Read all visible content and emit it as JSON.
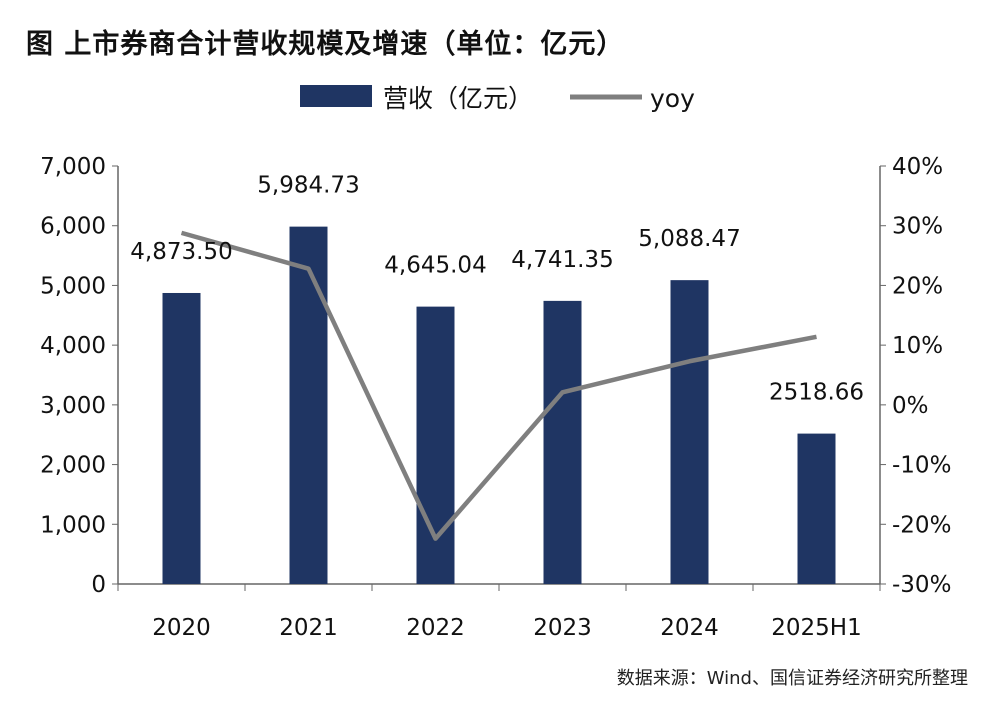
{
  "title": "图  上市券商合计营收规模及增速（单位：亿元）",
  "source": "数据来源：Wind、国信证券经济研究所整理",
  "colors": {
    "bar": "#1f3563",
    "line": "#7f7f7f"
  },
  "chart_data": {
    "type": "bar+line",
    "categories": [
      "2020",
      "2021",
      "2022",
      "2023",
      "2024",
      "2025H1"
    ],
    "series": [
      {
        "name": "营收（亿元）",
        "type": "bar",
        "axis": "left",
        "values": [
          4873.5,
          5984.73,
          4645.04,
          4741.35,
          5088.47,
          2518.66
        ],
        "labels": [
          "4,873.50",
          "5,984.73",
          "4,645.04",
          "4,741.35",
          "5,088.47",
          "2518.66"
        ]
      },
      {
        "name": "yoy",
        "type": "line",
        "axis": "right",
        "values": [
          28.8,
          22.8,
          -22.4,
          2.1,
          7.3,
          11.4
        ]
      }
    ],
    "left_axis": {
      "range": [
        0,
        7000
      ],
      "ticks": [
        "0",
        "1,000",
        "2,000",
        "3,000",
        "4,000",
        "5,000",
        "6,000",
        "7,000"
      ]
    },
    "right_axis": {
      "range": [
        -30,
        40
      ],
      "unit": "%",
      "ticks": [
        "-30%",
        "-20%",
        "-10%",
        "0%",
        "10%",
        "20%",
        "30%",
        "40%"
      ]
    },
    "legend": {
      "position": "top",
      "items": [
        "营收（亿元）",
        "yoy"
      ]
    },
    "grid": false
  }
}
